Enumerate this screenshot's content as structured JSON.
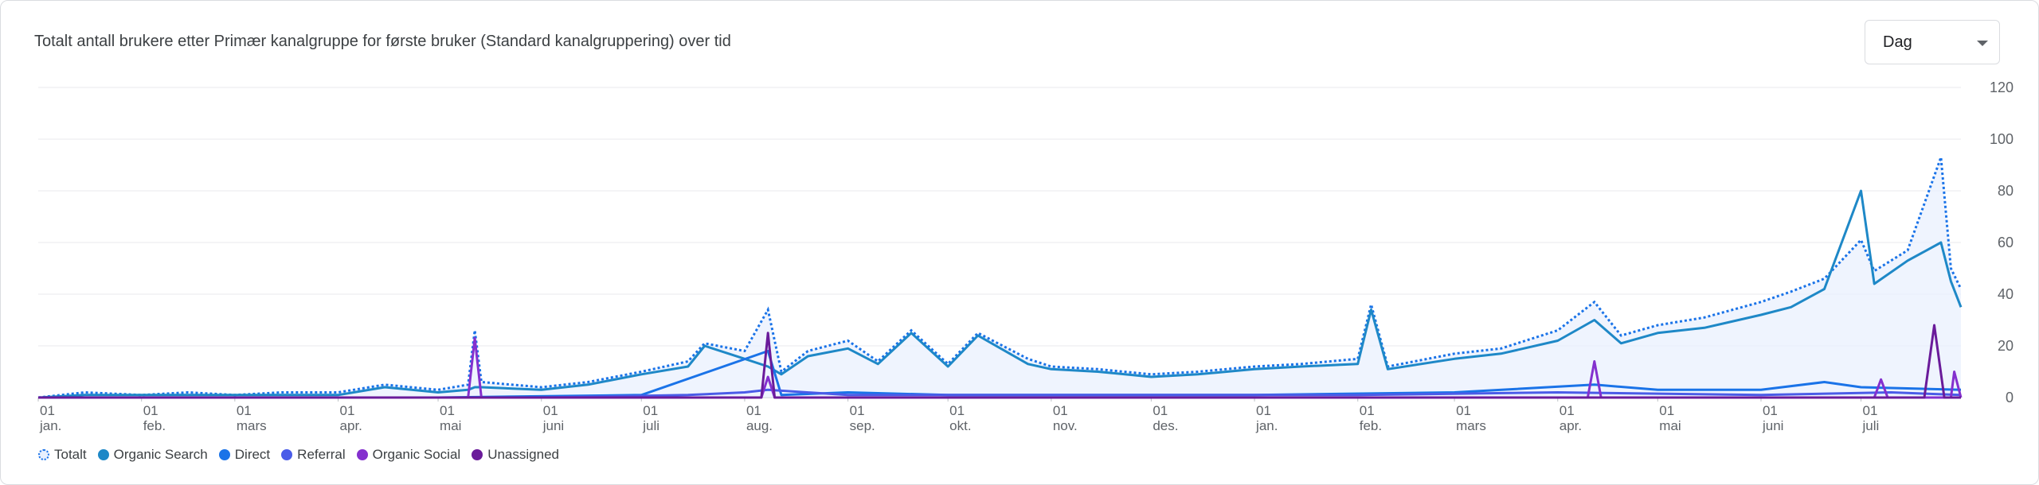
{
  "card": {
    "title": "Totalt antall brukere etter Primær kanalgruppe for første bruker (Standard kanalgruppering) over tid",
    "period_select": {
      "value": "Dag",
      "icon": "chevron-down-icon"
    }
  },
  "chart_data": {
    "type": "line",
    "grid": true,
    "ylim": [
      0,
      120
    ],
    "y_ticks": [
      "0",
      "20",
      "40",
      "60",
      "80",
      "100",
      "120"
    ],
    "x_range": [
      "2023-01-01",
      "2024-07-31"
    ],
    "x_ticks": [
      {
        "day": "01",
        "month": "jan.",
        "date": "2023-01-01"
      },
      {
        "day": "01",
        "month": "feb.",
        "date": "2023-02-01"
      },
      {
        "day": "01",
        "month": "mars",
        "date": "2023-03-01"
      },
      {
        "day": "01",
        "month": "apr.",
        "date": "2023-04-01"
      },
      {
        "day": "01",
        "month": "mai",
        "date": "2023-05-01"
      },
      {
        "day": "01",
        "month": "juni",
        "date": "2023-06-01"
      },
      {
        "day": "01",
        "month": "juli",
        "date": "2023-07-01"
      },
      {
        "day": "01",
        "month": "aug.",
        "date": "2023-08-01"
      },
      {
        "day": "01",
        "month": "sep.",
        "date": "2023-09-01"
      },
      {
        "day": "01",
        "month": "okt.",
        "date": "2023-10-01"
      },
      {
        "day": "01",
        "month": "nov.",
        "date": "2023-11-01"
      },
      {
        "day": "01",
        "month": "des.",
        "date": "2023-12-01"
      },
      {
        "day": "01",
        "month": "jan.",
        "date": "2024-01-01"
      },
      {
        "day": "01",
        "month": "feb.",
        "date": "2024-02-01"
      },
      {
        "day": "01",
        "month": "mars",
        "date": "2024-03-01"
      },
      {
        "day": "01",
        "month": "apr.",
        "date": "2024-04-01"
      },
      {
        "day": "01",
        "month": "mai",
        "date": "2024-05-01"
      },
      {
        "day": "01",
        "month": "juni",
        "date": "2024-06-01"
      },
      {
        "day": "01",
        "month": "juli",
        "date": "2024-07-01"
      }
    ],
    "legend_position": "bottom-left",
    "series": [
      {
        "name": "Totalt",
        "color": "#1a73e8",
        "style": "dotted-area",
        "points": [
          [
            "2023-01-01",
            0
          ],
          [
            "2023-01-15",
            2
          ],
          [
            "2023-02-01",
            1
          ],
          [
            "2023-02-15",
            2
          ],
          [
            "2023-03-01",
            1
          ],
          [
            "2023-03-15",
            2
          ],
          [
            "2023-04-01",
            2
          ],
          [
            "2023-04-15",
            5
          ],
          [
            "2023-05-01",
            3
          ],
          [
            "2023-05-10",
            5
          ],
          [
            "2023-05-12",
            26
          ],
          [
            "2023-05-14",
            6
          ],
          [
            "2023-06-01",
            4
          ],
          [
            "2023-06-15",
            6
          ],
          [
            "2023-07-01",
            10
          ],
          [
            "2023-07-15",
            14
          ],
          [
            "2023-07-20",
            21
          ],
          [
            "2023-08-01",
            18
          ],
          [
            "2023-08-08",
            34
          ],
          [
            "2023-08-12",
            10
          ],
          [
            "2023-08-20",
            18
          ],
          [
            "2023-09-01",
            22
          ],
          [
            "2023-09-10",
            14
          ],
          [
            "2023-09-20",
            26
          ],
          [
            "2023-10-01",
            13
          ],
          [
            "2023-10-10",
            25
          ],
          [
            "2023-10-25",
            15
          ],
          [
            "2023-11-01",
            12
          ],
          [
            "2023-11-15",
            11
          ],
          [
            "2023-12-01",
            9
          ],
          [
            "2023-12-15",
            10
          ],
          [
            "2024-01-01",
            12
          ],
          [
            "2024-01-15",
            13
          ],
          [
            "2024-02-01",
            15
          ],
          [
            "2024-02-05",
            36
          ],
          [
            "2024-02-10",
            12
          ],
          [
            "2024-03-01",
            17
          ],
          [
            "2024-03-15",
            19
          ],
          [
            "2024-04-01",
            26
          ],
          [
            "2024-04-12",
            37
          ],
          [
            "2024-04-20",
            24
          ],
          [
            "2024-05-01",
            28
          ],
          [
            "2024-05-15",
            31
          ],
          [
            "2024-06-01",
            37
          ],
          [
            "2024-06-10",
            41
          ],
          [
            "2024-06-20",
            46
          ],
          [
            "2024-07-01",
            61
          ],
          [
            "2024-07-05",
            49
          ],
          [
            "2024-07-15",
            57
          ],
          [
            "2024-07-25",
            93
          ],
          [
            "2024-07-28",
            50
          ],
          [
            "2024-07-31",
            42
          ]
        ]
      },
      {
        "name": "Organic Search",
        "color": "#1e88c7",
        "style": "solid",
        "points": [
          [
            "2023-01-01",
            0
          ],
          [
            "2023-01-15",
            1
          ],
          [
            "2023-02-01",
            1
          ],
          [
            "2023-02-15",
            1
          ],
          [
            "2023-03-01",
            1
          ],
          [
            "2023-03-15",
            1
          ],
          [
            "2023-04-01",
            1
          ],
          [
            "2023-04-15",
            4
          ],
          [
            "2023-05-01",
            2
          ],
          [
            "2023-05-10",
            3
          ],
          [
            "2023-05-12",
            4
          ],
          [
            "2023-05-14",
            4
          ],
          [
            "2023-06-01",
            3
          ],
          [
            "2023-06-15",
            5
          ],
          [
            "2023-07-01",
            9
          ],
          [
            "2023-07-15",
            12
          ],
          [
            "2023-07-20",
            20
          ],
          [
            "2023-08-01",
            15
          ],
          [
            "2023-08-08",
            12
          ],
          [
            "2023-08-12",
            9
          ],
          [
            "2023-08-20",
            16
          ],
          [
            "2023-09-01",
            19
          ],
          [
            "2023-09-10",
            13
          ],
          [
            "2023-09-20",
            25
          ],
          [
            "2023-10-01",
            12
          ],
          [
            "2023-10-10",
            24
          ],
          [
            "2023-10-25",
            13
          ],
          [
            "2023-11-01",
            11
          ],
          [
            "2023-11-15",
            10
          ],
          [
            "2023-12-01",
            8
          ],
          [
            "2023-12-15",
            9
          ],
          [
            "2024-01-01",
            11
          ],
          [
            "2024-01-15",
            12
          ],
          [
            "2024-02-01",
            13
          ],
          [
            "2024-02-05",
            34
          ],
          [
            "2024-02-10",
            11
          ],
          [
            "2024-03-01",
            15
          ],
          [
            "2024-03-15",
            17
          ],
          [
            "2024-04-01",
            22
          ],
          [
            "2024-04-12",
            30
          ],
          [
            "2024-04-20",
            21
          ],
          [
            "2024-05-01",
            25
          ],
          [
            "2024-05-15",
            27
          ],
          [
            "2024-06-01",
            32
          ],
          [
            "2024-06-10",
            35
          ],
          [
            "2024-06-20",
            42
          ],
          [
            "2024-07-01",
            80
          ],
          [
            "2024-07-05",
            44
          ],
          [
            "2024-07-15",
            53
          ],
          [
            "2024-07-25",
            60
          ],
          [
            "2024-07-28",
            45
          ],
          [
            "2024-07-31",
            35
          ]
        ]
      },
      {
        "name": "Direct",
        "color": "#1a73e8",
        "style": "solid",
        "points": [
          [
            "2023-01-01",
            0
          ],
          [
            "2023-03-01",
            0
          ],
          [
            "2023-05-01",
            0
          ],
          [
            "2023-07-01",
            1
          ],
          [
            "2023-08-08",
            18
          ],
          [
            "2023-08-12",
            1
          ],
          [
            "2023-09-01",
            2
          ],
          [
            "2023-10-01",
            1
          ],
          [
            "2023-11-01",
            1
          ],
          [
            "2023-12-01",
            1
          ],
          [
            "2024-01-01",
            1
          ],
          [
            "2024-03-01",
            2
          ],
          [
            "2024-04-12",
            5
          ],
          [
            "2024-05-01",
            3
          ],
          [
            "2024-06-01",
            3
          ],
          [
            "2024-06-20",
            6
          ],
          [
            "2024-07-01",
            4
          ],
          [
            "2024-07-31",
            3
          ]
        ]
      },
      {
        "name": "Referral",
        "color": "#4a5ce8",
        "style": "solid",
        "points": [
          [
            "2023-01-01",
            0
          ],
          [
            "2023-04-01",
            0
          ],
          [
            "2023-06-01",
            0
          ],
          [
            "2023-07-15",
            1
          ],
          [
            "2023-08-01",
            2
          ],
          [
            "2023-08-08",
            3
          ],
          [
            "2023-09-01",
            1
          ],
          [
            "2023-12-01",
            1
          ],
          [
            "2024-02-01",
            1
          ],
          [
            "2024-04-01",
            2
          ],
          [
            "2024-06-01",
            1
          ],
          [
            "2024-07-10",
            2
          ],
          [
            "2024-07-31",
            1
          ]
        ]
      },
      {
        "name": "Organic Social",
        "color": "#8430ce",
        "style": "solid",
        "points": [
          [
            "2023-01-01",
            0
          ],
          [
            "2023-05-10",
            0
          ],
          [
            "2023-05-12",
            23
          ],
          [
            "2023-05-14",
            0
          ],
          [
            "2023-08-06",
            0
          ],
          [
            "2023-08-08",
            8
          ],
          [
            "2023-08-10",
            0
          ],
          [
            "2024-04-10",
            0
          ],
          [
            "2024-04-12",
            14
          ],
          [
            "2024-04-14",
            0
          ],
          [
            "2024-07-05",
            0
          ],
          [
            "2024-07-07",
            7
          ],
          [
            "2024-07-09",
            0
          ],
          [
            "2024-07-28",
            0
          ],
          [
            "2024-07-29",
            10
          ],
          [
            "2024-07-31",
            0
          ]
        ]
      },
      {
        "name": "Unassigned",
        "color": "#6a1b9a",
        "style": "solid",
        "points": [
          [
            "2023-01-01",
            0
          ],
          [
            "2023-08-06",
            0
          ],
          [
            "2023-08-08",
            25
          ],
          [
            "2023-08-10",
            0
          ],
          [
            "2024-07-20",
            0
          ],
          [
            "2024-07-23",
            28
          ],
          [
            "2024-07-26",
            0
          ],
          [
            "2024-07-31",
            0
          ]
        ]
      }
    ]
  }
}
